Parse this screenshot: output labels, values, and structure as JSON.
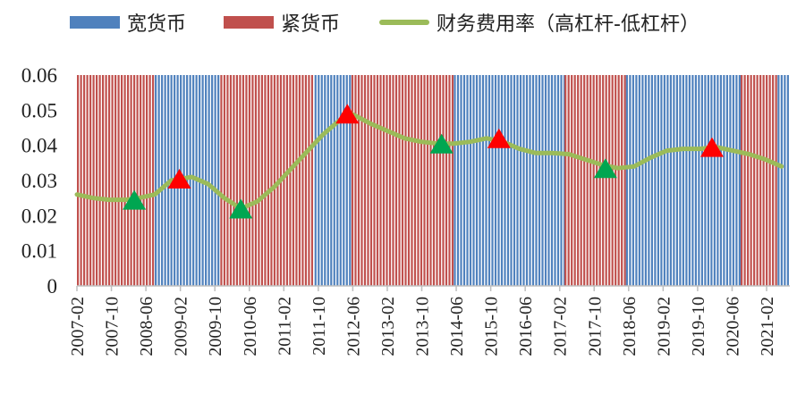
{
  "chart_data": {
    "type": "line",
    "title": "",
    "xlabel": "",
    "ylabel": "",
    "ylim": [
      0,
      0.06
    ],
    "yticks": [
      "0",
      "0.01",
      "0.02",
      "0.03",
      "0.04",
      "0.05",
      "0.06"
    ],
    "grid": false,
    "legend_position": "top",
    "legend": {
      "loose": "宽货币",
      "tight": "紧货币",
      "line": "财务费用率（高杠杆-低杠杆）"
    },
    "colors": {
      "loose": "#4f81bd",
      "tight": "#c0504d",
      "line": "#9bbb59",
      "triangle_up": "#00a651",
      "triangle_down": "#ff0000"
    },
    "x_tick_labels": [
      "2007-02",
      "2007-10",
      "2008-06",
      "2009-02",
      "2009-10",
      "2010-06",
      "2011-02",
      "2011-10",
      "2012-06",
      "2013-02",
      "2013-10",
      "2014-06",
      "2015-10",
      "2016-06",
      "2017-02",
      "2017-10",
      "2018-06",
      "2019-02",
      "2019-10",
      "2020-06",
      "2021-02"
    ],
    "regimes": [
      {
        "start": "2007-02",
        "end": "2008-09",
        "policy": "tight"
      },
      {
        "start": "2008-09",
        "end": "2010-01",
        "policy": "loose"
      },
      {
        "start": "2010-01",
        "end": "2011-12",
        "policy": "tight"
      },
      {
        "start": "2011-12",
        "end": "2012-09",
        "policy": "loose"
      },
      {
        "start": "2012-09",
        "end": "2014-10",
        "policy": "tight"
      },
      {
        "start": "2014-10",
        "end": "2017-01",
        "policy": "loose"
      },
      {
        "start": "2017-01",
        "end": "2018-04",
        "policy": "tight"
      },
      {
        "start": "2018-04",
        "end": "2020-08",
        "policy": "loose"
      },
      {
        "start": "2020-08",
        "end": "2021-05",
        "policy": "tight"
      },
      {
        "start": "2021-05",
        "end": "2021-08",
        "policy": "loose"
      }
    ],
    "series": [
      {
        "name": "财务费用率（高杠杆-低杠杆）",
        "points": [
          [
            "2007-02",
            0.026
          ],
          [
            "2007-06",
            0.025
          ],
          [
            "2007-10",
            0.0245
          ],
          [
            "2008-02",
            0.0245
          ],
          [
            "2008-05",
            0.025
          ],
          [
            "2008-09",
            0.026
          ],
          [
            "2009-01",
            0.03
          ],
          [
            "2009-06",
            0.031
          ],
          [
            "2009-10",
            0.029
          ],
          [
            "2010-02",
            0.025
          ],
          [
            "2010-06",
            0.022
          ],
          [
            "2010-10",
            0.024
          ],
          [
            "2011-02",
            0.028
          ],
          [
            "2011-06",
            0.033
          ],
          [
            "2011-10",
            0.038
          ],
          [
            "2012-02",
            0.043
          ],
          [
            "2012-06",
            0.047
          ],
          [
            "2012-09",
            0.049
          ],
          [
            "2013-02",
            0.046
          ],
          [
            "2013-06",
            0.044
          ],
          [
            "2013-10",
            0.042
          ],
          [
            "2014-02",
            0.041
          ],
          [
            "2014-06",
            0.0405
          ],
          [
            "2014-10",
            0.0405
          ],
          [
            "2015-02",
            0.041
          ],
          [
            "2015-06",
            0.042
          ],
          [
            "2015-10",
            0.041
          ],
          [
            "2016-02",
            0.039
          ],
          [
            "2016-06",
            0.0378
          ],
          [
            "2016-10",
            0.0378
          ],
          [
            "2017-02",
            0.0375
          ],
          [
            "2017-06",
            0.036
          ],
          [
            "2017-10",
            0.0345
          ],
          [
            "2018-02",
            0.0335
          ],
          [
            "2018-06",
            0.034
          ],
          [
            "2018-10",
            0.0365
          ],
          [
            "2019-02",
            0.0385
          ],
          [
            "2019-06",
            0.039
          ],
          [
            "2019-10",
            0.039
          ],
          [
            "2020-02",
            0.0395
          ],
          [
            "2020-06",
            0.0385
          ],
          [
            "2020-10",
            0.0375
          ],
          [
            "2021-02",
            0.036
          ],
          [
            "2021-06",
            0.034
          ]
        ]
      }
    ],
    "markers": [
      {
        "date": "2008-04",
        "value": 0.0245,
        "direction": "up"
      },
      {
        "date": "2009-03",
        "value": 0.0305,
        "direction": "down"
      },
      {
        "date": "2010-06",
        "value": 0.022,
        "direction": "up"
      },
      {
        "date": "2012-08",
        "value": 0.049,
        "direction": "down"
      },
      {
        "date": "2014-07",
        "value": 0.0405,
        "direction": "up"
      },
      {
        "date": "2015-09",
        "value": 0.042,
        "direction": "down"
      },
      {
        "date": "2017-11",
        "value": 0.0335,
        "direction": "up"
      },
      {
        "date": "2020-01",
        "value": 0.0395,
        "direction": "down"
      }
    ]
  }
}
